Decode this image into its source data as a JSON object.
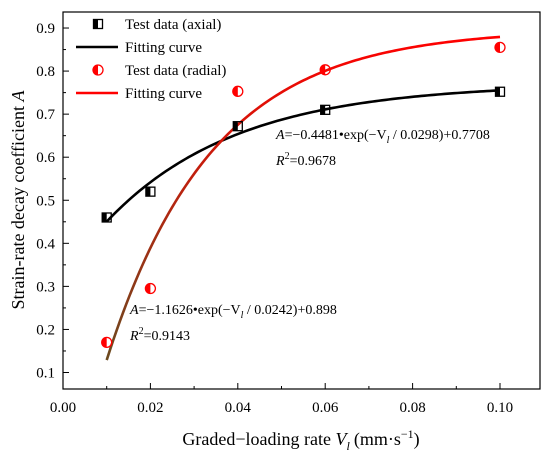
{
  "chart_data": {
    "type": "scatter",
    "xlabel": "Graded−loading rate V₁ (mm·s⁻¹)",
    "xlabel_parts": {
      "main": "Graded−loading rate ",
      "var": "V",
      "sub": "l",
      "unit": "(mm·s",
      "sup": "−1",
      "close": ")"
    },
    "ylabel_parts": {
      "main": "Strain-rate decay coefficient ",
      "var": "A"
    },
    "ylabel": "Strain-rate decay coefficient A",
    "xlim": [
      0.0,
      0.1
    ],
    "ylim": [
      0.1,
      0.9
    ],
    "xticks": [
      "0.00",
      "0.02",
      "0.04",
      "0.06",
      "0.08",
      "0.10"
    ],
    "yticks": [
      "0.1",
      "0.2",
      "0.3",
      "0.4",
      "0.5",
      "0.6",
      "0.7",
      "0.8",
      "0.9"
    ],
    "grid": false,
    "legend_position": "top-left",
    "series": [
      {
        "name": "Test data (axial)",
        "kind": "points",
        "marker": "half-filled-square",
        "color": "#000000",
        "x": [
          0.01,
          0.02,
          0.04,
          0.06,
          0.1
        ],
        "y": [
          0.46,
          0.52,
          0.672,
          0.71,
          0.752
        ]
      },
      {
        "name": "Fitting curve",
        "kind": "fit",
        "color": "#000000",
        "equation": {
          "a": -0.4481,
          "t": 0.0298,
          "c": 0.7708
        },
        "x_range": [
          0.01,
          0.1
        ]
      },
      {
        "name": "Test data (radial)",
        "kind": "points",
        "marker": "half-filled-circle",
        "color": "#ff0000",
        "x": [
          0.01,
          0.02,
          0.04,
          0.06,
          0.1
        ],
        "y": [
          0.17,
          0.295,
          0.753,
          0.803,
          0.855
        ]
      },
      {
        "name": "Fitting curve",
        "kind": "fit",
        "color": "#ff0000",
        "equation": {
          "a": -1.1626,
          "t": 0.0242,
          "c": 0.898
        },
        "x_range": [
          0.01,
          0.1
        ]
      }
    ],
    "annotations": [
      {
        "eq_prefix": "A",
        "eq_body": "=−0.4481•exp(−V",
        "eq_sub": "l",
        "eq_tail": " / 0.0298)+0.7708",
        "r2_prefix": "R",
        "r2_sup": "2",
        "r2_value": "=0.9678"
      },
      {
        "eq_prefix": "A",
        "eq_body": "=−1.1626•exp(−V",
        "eq_sub": "l",
        "eq_tail": " / 0.0242)+0.898",
        "r2_prefix": "R",
        "r2_sup": "2",
        "r2_value": "=0.9143"
      }
    ]
  }
}
